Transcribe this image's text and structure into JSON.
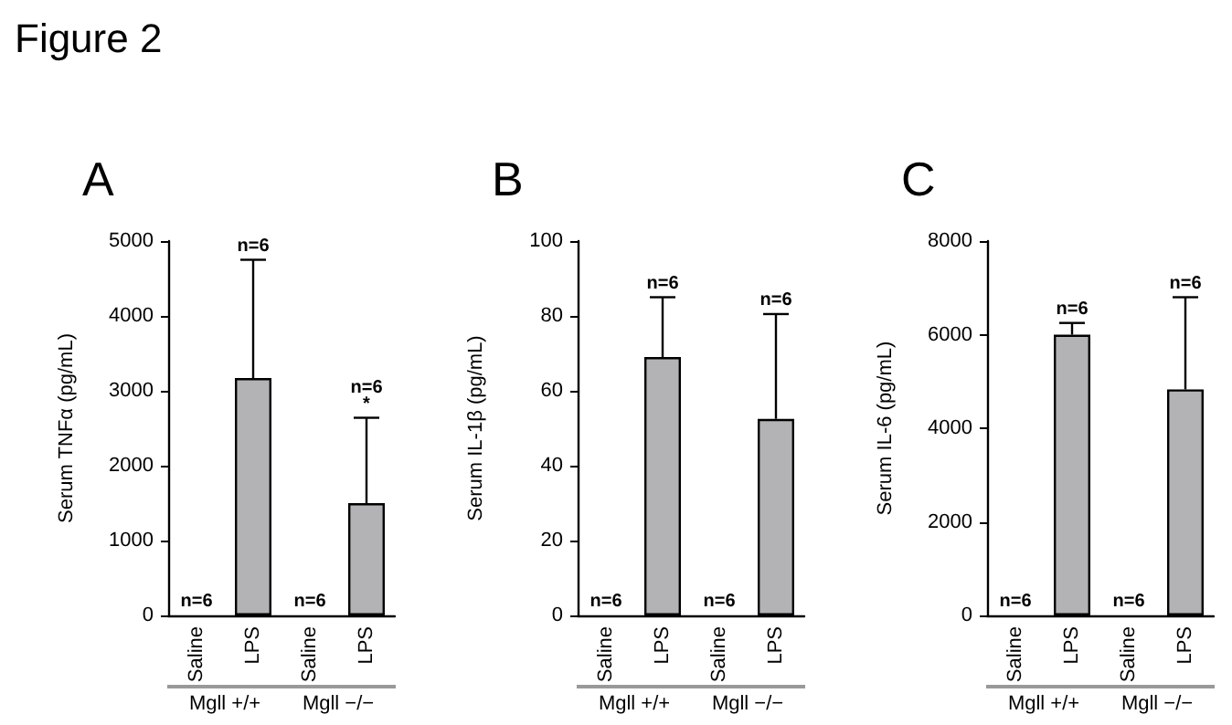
{
  "chart_data": [
    {
      "type": "bar",
      "title": "A",
      "ylabel": "Serum TNFα (pg/mL)",
      "categories": [
        "Saline",
        "LPS",
        "Saline",
        "LPS"
      ],
      "values": [
        0,
        3170,
        0,
        1500
      ],
      "errors": [
        null,
        [
          3170,
          4750
        ],
        null,
        [
          1500,
          2640
        ]
      ],
      "color": "#b3b3b5",
      "ylim": [
        0,
        5000
      ],
      "yticks": [
        0,
        1000,
        2000,
        3000,
        4000,
        5000
      ],
      "grid": false,
      "annotations": [
        "Figure 2",
        "n=6",
        "n=6",
        "n=6",
        "n=6\n*",
        "Mgll +/+",
        "Mgll −/−"
      ]
    },
    {
      "type": "bar",
      "title": "B",
      "ylabel": "Serum IL-1β (pg/mL)",
      "categories": [
        "Saline",
        "LPS",
        "Saline",
        "LPS"
      ],
      "values": [
        0,
        69,
        0,
        52.5
      ],
      "errors": [
        null,
        [
          69,
          85
        ],
        null,
        [
          52.5,
          80.5
        ]
      ],
      "color": "#b3b3b5",
      "ylim": [
        0,
        100
      ],
      "yticks": [
        0,
        20,
        40,
        60,
        80,
        100
      ],
      "grid": false,
      "annotations": [
        "n=6",
        "n=6",
        "n=6",
        "n=6",
        "Mgll +/+",
        "Mgll −/−"
      ]
    },
    {
      "type": "bar",
      "title": "C",
      "ylabel": "Serum IL-6 (pg/mL)",
      "categories": [
        "Saline",
        "LPS",
        "Saline",
        "LPS"
      ],
      "values": [
        0,
        6000,
        0,
        4830
      ],
      "errors": [
        null,
        [
          6000,
          6250
        ],
        null,
        [
          4830,
          6800
        ]
      ],
      "color": "#b3b3b5",
      "ylim": [
        0,
        8000
      ],
      "yticks": [
        0,
        2000,
        4000,
        6000,
        8000
      ],
      "grid": false,
      "annotations": [
        "n=6",
        "n=6",
        "n=6",
        "n=6",
        "Mgll +/+",
        "Mgll −/−"
      ]
    }
  ]
}
